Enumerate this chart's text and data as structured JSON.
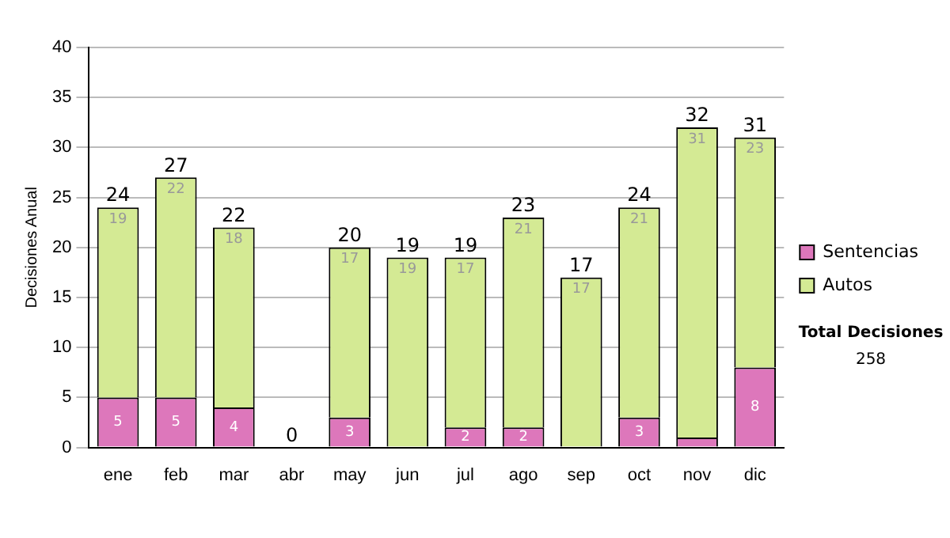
{
  "chart_data": {
    "type": "bar",
    "stacked": true,
    "ylabel": "Decisiones Anual",
    "categories": [
      "ene",
      "feb",
      "mar",
      "abr",
      "may",
      "jun",
      "jul",
      "ago",
      "sep",
      "oct",
      "nov",
      "dic"
    ],
    "series": [
      {
        "name": "Sentencias",
        "color": "#dd77bb",
        "values": [
          5,
          5,
          4,
          0,
          3,
          0,
          2,
          2,
          0,
          3,
          1,
          8
        ],
        "value_labels": [
          "5",
          "5",
          "4",
          null,
          "3",
          null,
          "2",
          "2",
          null,
          "3",
          null,
          "8"
        ]
      },
      {
        "name": "Autos",
        "color": "#d4ea94",
        "values": [
          19,
          22,
          18,
          0,
          17,
          19,
          17,
          21,
          17,
          21,
          31,
          23
        ],
        "value_labels": [
          "19",
          "22",
          "18",
          null,
          "17",
          "19",
          "17",
          "21",
          "17",
          "21",
          "31",
          "23"
        ]
      }
    ],
    "totals": [
      "24",
      "27",
      "22",
      "0",
      "20",
      "19",
      "19",
      "23",
      "17",
      "24",
      "32",
      "31"
    ],
    "ylim": [
      0,
      40
    ],
    "yticks": [
      0,
      5,
      10,
      15,
      20,
      25,
      30,
      35,
      40
    ],
    "grid": "y",
    "legend": "right",
    "annotations": [
      "Total Decisiones",
      "258"
    ]
  }
}
